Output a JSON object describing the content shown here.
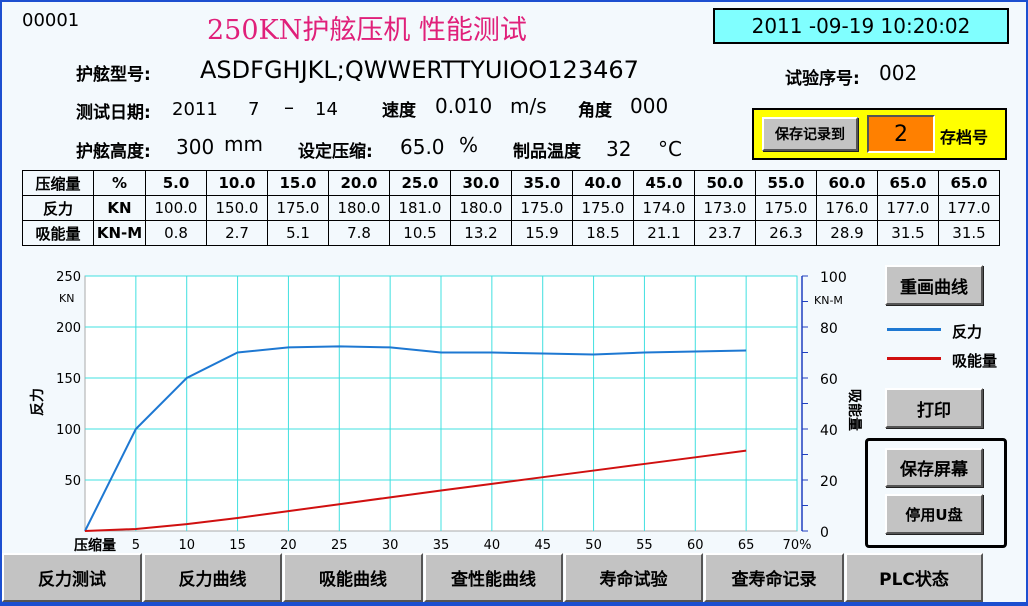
{
  "header": {
    "screen_no": "00001",
    "title": "250KN护舷压机 性能测试",
    "datetime": "2011 -09-19  10:20:02"
  },
  "info": {
    "model_label": "护舷型号:",
    "model_value": "ASDFGHJKL;QWWERTTYUIOO123467",
    "seq_label": "试验序号:",
    "seq_value": "002",
    "date_label": "测试日期:",
    "date_year": "2011",
    "date_month": "7",
    "date_sep": "–",
    "date_day": "14",
    "speed_label": "速度",
    "speed_value": "0.010",
    "speed_unit": "m/s",
    "angle_label": "角度",
    "angle_value": "000",
    "height_label": "护舷高度:",
    "height_value": "300",
    "height_unit": "mm",
    "compress_label": "设定压缩:",
    "compress_value": "65.0",
    "compress_unit": "%",
    "temp_label": "制品温度",
    "temp_value": "32",
    "temp_unit": "°C"
  },
  "save_panel": {
    "button": "保存记录到",
    "slot": "2",
    "slot_label": "存档号"
  },
  "table": {
    "rows": [
      {
        "name": "压缩量",
        "unit": "%",
        "values": [
          "5.0",
          "10.0",
          "15.0",
          "20.0",
          "25.0",
          "30.0",
          "35.0",
          "40.0",
          "45.0",
          "50.0",
          "55.0",
          "60.0",
          "65.0",
          "65.0"
        ]
      },
      {
        "name": "反力",
        "unit": "KN",
        "values": [
          "100.0",
          "150.0",
          "175.0",
          "180.0",
          "181.0",
          "180.0",
          "175.0",
          "175.0",
          "174.0",
          "173.0",
          "175.0",
          "176.0",
          "177.0",
          "177.0"
        ]
      },
      {
        "name": "吸能量",
        "unit": "KN-M",
        "values": [
          "0.8",
          "2.7",
          "5.1",
          "7.8",
          "10.5",
          "13.2",
          "15.9",
          "18.5",
          "21.1",
          "23.7",
          "26.3",
          "28.9",
          "31.5",
          "31.5"
        ]
      }
    ]
  },
  "chart_data": {
    "type": "line",
    "xlabel": "压缩量",
    "x_ticks": [
      "5",
      "10",
      "15",
      "20",
      "25",
      "30",
      "35",
      "40",
      "45",
      "50",
      "55",
      "60",
      "65",
      "70%"
    ],
    "xlim": [
      0,
      70
    ],
    "ylabel": "反力",
    "yunit": "KN",
    "y_ticks": [
      "50",
      "100",
      "150",
      "200",
      "250"
    ],
    "ylim": [
      0,
      250
    ],
    "y2label": "吸能量",
    "y2unit": "KN-M",
    "y2_ticks": [
      "0",
      "20",
      "40",
      "60",
      "80",
      "100"
    ],
    "y2lim": [
      0,
      100
    ],
    "grid": true,
    "legend_placement": "right",
    "series": [
      {
        "name": "反力",
        "axis": "left",
        "color": "#1e78d2",
        "x": [
          0,
          5,
          10,
          15,
          20,
          25,
          30,
          35,
          40,
          45,
          50,
          55,
          60,
          65
        ],
        "y": [
          0,
          100,
          150,
          175,
          180,
          181,
          180,
          175,
          175,
          174,
          173,
          175,
          176,
          177
        ]
      },
      {
        "name": "吸能量",
        "axis": "right",
        "color": "#d01010",
        "x": [
          0,
          5,
          10,
          15,
          20,
          25,
          30,
          35,
          40,
          45,
          50,
          55,
          60,
          65
        ],
        "y": [
          0,
          0.8,
          2.7,
          5.1,
          7.8,
          10.5,
          13.2,
          15.9,
          18.5,
          21.1,
          23.7,
          26.3,
          28.9,
          31.5
        ]
      }
    ]
  },
  "side": {
    "redraw": "重画曲线",
    "print": "打印",
    "save_screen": "保存屏幕",
    "disable_usb": "停用U盘"
  },
  "nav": [
    "反力测试",
    "反力曲线",
    "吸能曲线",
    "查性能曲线",
    "寿命试验",
    "查寿命记录",
    "PLC状态"
  ]
}
